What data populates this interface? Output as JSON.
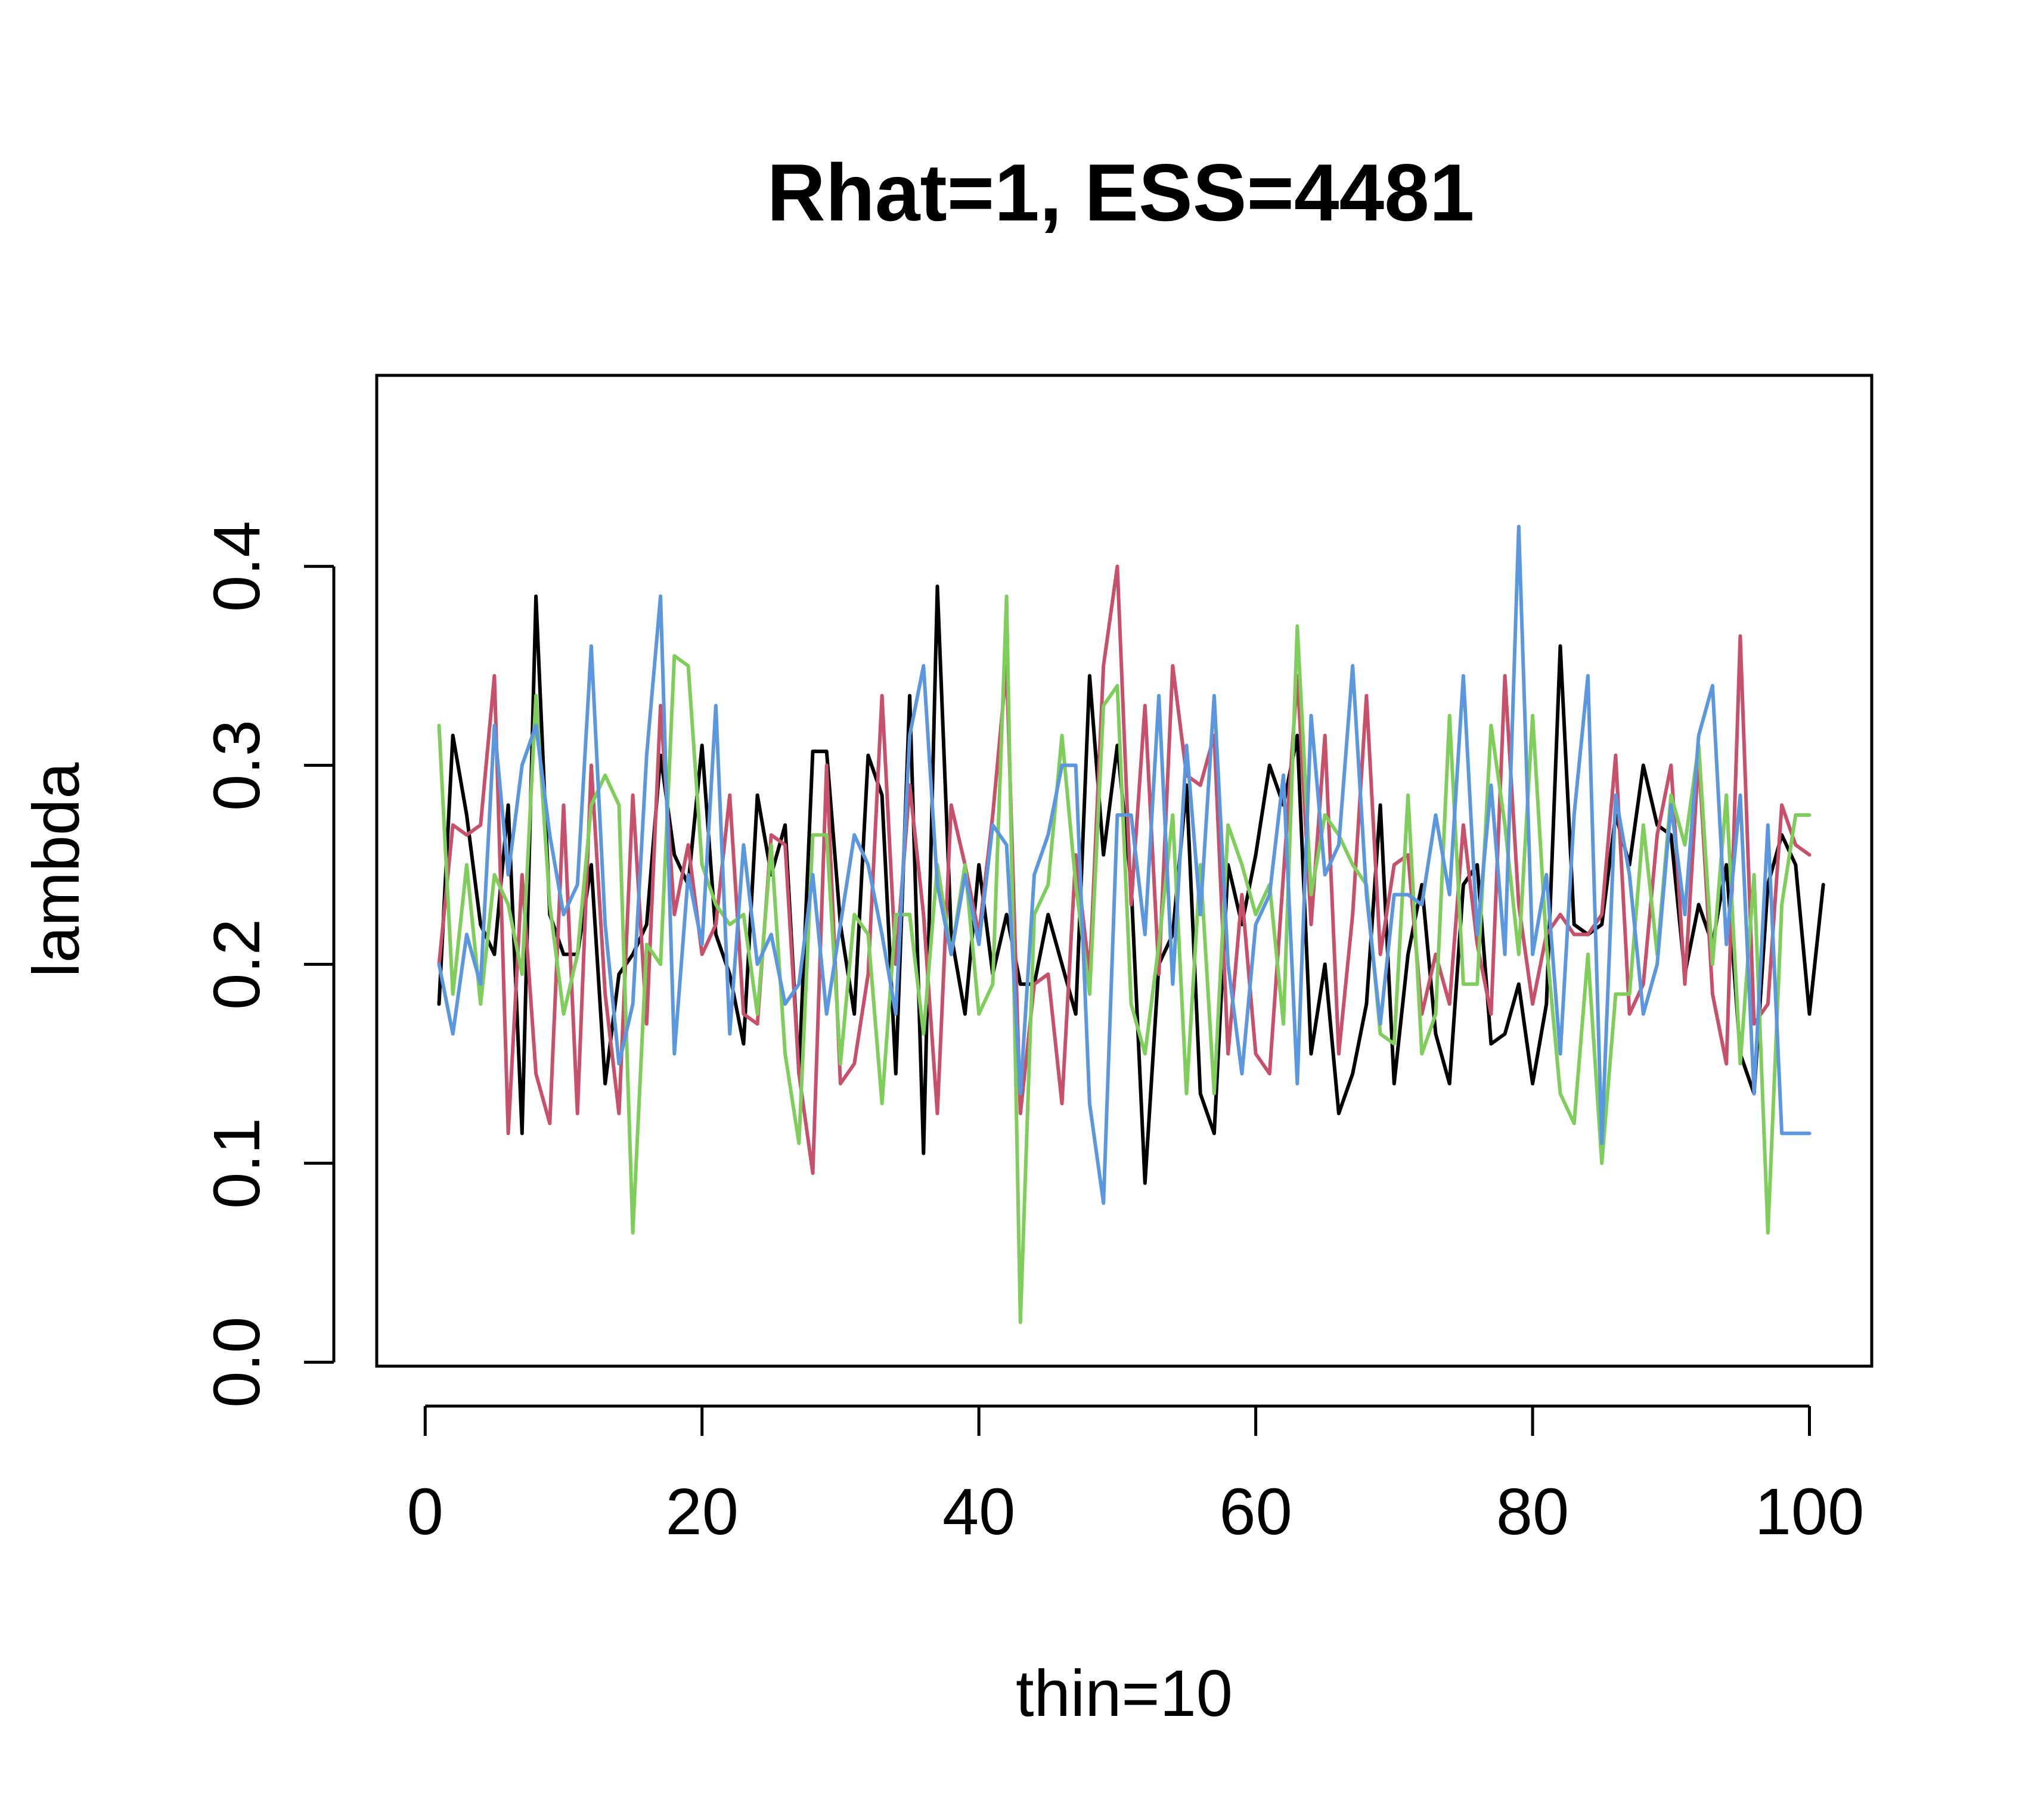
{
  "chart_data": {
    "type": "line",
    "title": "Rhat=1, ESS=4481",
    "xlabel": "thin=10",
    "ylabel": "lambda",
    "xlim": [
      -3.5,
      104.5
    ],
    "ylim": [
      -0.002,
      0.496
    ],
    "xticks": [
      0,
      20,
      40,
      60,
      80,
      100
    ],
    "xtick_labels": [
      "0",
      "20",
      "40",
      "60",
      "80",
      "100"
    ],
    "yticks": [
      0.0,
      0.1,
      0.2,
      0.3,
      0.4
    ],
    "ytick_labels": [
      "0.0",
      "0.1",
      "0.2",
      "0.3",
      "0.4"
    ],
    "grid": false,
    "legend": "none",
    "series": [
      {
        "color": "#000000",
        "values": [
          0.18,
          0.315,
          0.275,
          0.22,
          0.205,
          0.28,
          0.115,
          0.385,
          0.225,
          0.205,
          0.205,
          0.25,
          0.14,
          0.195,
          0.205,
          0.22,
          0.305,
          0.255,
          0.24,
          0.31,
          0.215,
          0.195,
          0.16,
          0.285,
          0.245,
          0.27,
          0.145,
          0.307,
          0.307,
          0.22,
          0.175,
          0.305,
          0.285,
          0.145,
          0.335,
          0.105,
          0.39,
          0.215,
          0.175,
          0.25,
          0.195,
          0.225,
          0.19,
          0.19,
          0.225,
          0.2,
          0.175,
          0.345,
          0.255,
          0.31,
          0.24,
          0.09,
          0.2,
          0.215,
          0.29,
          0.135,
          0.115,
          0.25,
          0.22,
          0.255,
          0.3,
          0.28,
          0.315,
          0.155,
          0.2,
          0.125,
          0.145,
          0.18,
          0.28,
          0.14,
          0.205,
          0.24,
          0.165,
          0.14,
          0.24,
          0.25,
          0.16,
          0.165,
          0.19,
          0.14,
          0.18,
          0.36,
          0.22,
          0.215,
          0.22,
          0.275,
          0.25,
          0.3,
          0.27,
          0.265,
          0.195,
          0.23,
          0.21,
          0.25,
          0.155,
          0.135,
          0.24,
          0.265,
          0.25,
          0.175,
          0.24
        ]
      },
      {
        "color": "#c7506a",
        "values": [
          0.2,
          0.27,
          0.265,
          0.27,
          0.345,
          0.115,
          0.245,
          0.145,
          0.12,
          0.28,
          0.125,
          0.3,
          0.185,
          0.125,
          0.285,
          0.17,
          0.33,
          0.225,
          0.26,
          0.205,
          0.22,
          0.285,
          0.175,
          0.17,
          0.265,
          0.26,
          0.145,
          0.095,
          0.3,
          0.14,
          0.15,
          0.195,
          0.335,
          0.2,
          0.29,
          0.225,
          0.125,
          0.28,
          0.25,
          0.215,
          0.275,
          0.35,
          0.125,
          0.19,
          0.195,
          0.13,
          0.255,
          0.195,
          0.35,
          0.4,
          0.23,
          0.33,
          0.195,
          0.35,
          0.295,
          0.29,
          0.315,
          0.155,
          0.235,
          0.155,
          0.145,
          0.245,
          0.345,
          0.22,
          0.315,
          0.155,
          0.225,
          0.335,
          0.205,
          0.25,
          0.255,
          0.175,
          0.205,
          0.18,
          0.27,
          0.21,
          0.175,
          0.345,
          0.23,
          0.18,
          0.215,
          0.225,
          0.215,
          0.215,
          0.225,
          0.305,
          0.175,
          0.19,
          0.265,
          0.3,
          0.19,
          0.305,
          0.185,
          0.15,
          0.365,
          0.17,
          0.18,
          0.28,
          0.26,
          0.255
        ]
      },
      {
        "color": "#7fcd5b",
        "values": [
          0.32,
          0.185,
          0.25,
          0.18,
          0.245,
          0.23,
          0.195,
          0.335,
          0.23,
          0.175,
          0.205,
          0.28,
          0.295,
          0.28,
          0.065,
          0.21,
          0.2,
          0.355,
          0.35,
          0.25,
          0.23,
          0.22,
          0.225,
          0.175,
          0.26,
          0.155,
          0.11,
          0.265,
          0.265,
          0.15,
          0.225,
          0.215,
          0.13,
          0.225,
          0.225,
          0.165,
          0.25,
          0.205,
          0.25,
          0.175,
          0.19,
          0.385,
          0.02,
          0.225,
          0.24,
          0.315,
          0.24,
          0.185,
          0.33,
          0.34,
          0.18,
          0.155,
          0.21,
          0.275,
          0.135,
          0.25,
          0.135,
          0.27,
          0.25,
          0.225,
          0.24,
          0.17,
          0.37,
          0.235,
          0.275,
          0.265,
          0.25,
          0.24,
          0.165,
          0.16,
          0.285,
          0.155,
          0.175,
          0.325,
          0.19,
          0.19,
          0.32,
          0.27,
          0.205,
          0.325,
          0.21,
          0.135,
          0.12,
          0.205,
          0.1,
          0.185,
          0.185,
          0.27,
          0.205,
          0.285,
          0.26,
          0.31,
          0.2,
          0.285,
          0.15,
          0.245,
          0.065,
          0.23,
          0.275,
          0.275
        ]
      },
      {
        "color": "#5b97de",
        "values": [
          0.2,
          0.165,
          0.215,
          0.19,
          0.32,
          0.245,
          0.3,
          0.32,
          0.265,
          0.225,
          0.24,
          0.36,
          0.22,
          0.15,
          0.18,
          0.305,
          0.385,
          0.155,
          0.245,
          0.21,
          0.33,
          0.165,
          0.26,
          0.2,
          0.215,
          0.18,
          0.19,
          0.245,
          0.175,
          0.22,
          0.265,
          0.25,
          0.215,
          0.175,
          0.315,
          0.35,
          0.24,
          0.205,
          0.245,
          0.21,
          0.27,
          0.26,
          0.135,
          0.245,
          0.265,
          0.3,
          0.3,
          0.13,
          0.08,
          0.275,
          0.275,
          0.215,
          0.335,
          0.19,
          0.31,
          0.225,
          0.335,
          0.2,
          0.145,
          0.22,
          0.235,
          0.295,
          0.14,
          0.325,
          0.245,
          0.26,
          0.35,
          0.235,
          0.17,
          0.235,
          0.235,
          0.23,
          0.275,
          0.235,
          0.345,
          0.215,
          0.29,
          0.205,
          0.42,
          0.205,
          0.245,
          0.155,
          0.275,
          0.345,
          0.11,
          0.285,
          0.245,
          0.175,
          0.2,
          0.28,
          0.225,
          0.315,
          0.34,
          0.21,
          0.285,
          0.135,
          0.27,
          0.115,
          0.115,
          0.115
        ]
      }
    ]
  }
}
